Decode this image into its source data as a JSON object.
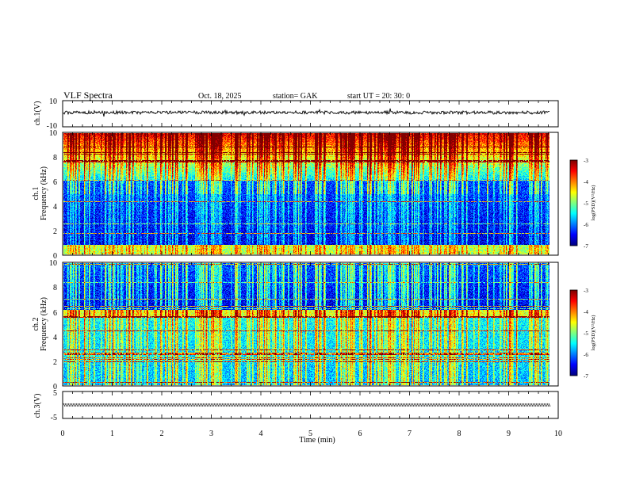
{
  "header": {
    "title": "VLF  Spectra",
    "date": "Oct. 18, 2025",
    "station": "station= GAK",
    "start": "start  UT  =   20: 30: 0"
  },
  "chart_data": [
    {
      "type": "line",
      "name": "ch1-waveform",
      "ylabel": "ch.1(V)",
      "ylim": [
        -10,
        10
      ],
      "yticks": [
        "10",
        "-10"
      ]
    },
    {
      "type": "heatmap",
      "name": "ch1-spectrogram",
      "ylabel_channel": "ch.1",
      "ylabel": "Frequency  (kHz)",
      "ylim": [
        0,
        10
      ],
      "yticks": [
        "0",
        "2",
        "4",
        "6",
        "8",
        "10"
      ],
      "colorbar": {
        "label": "log(PSD)(V²/Hz)",
        "range": [
          -7,
          -3
        ],
        "ticks": [
          "-3",
          "-4",
          "-5",
          "-6",
          "-7"
        ]
      }
    },
    {
      "type": "heatmap",
      "name": "ch2-spectrogram",
      "ylabel_channel": "ch.2",
      "ylabel": "Frequency  (kHz)",
      "ylim": [
        0,
        10
      ],
      "yticks": [
        "0",
        "2",
        "4",
        "6",
        "8",
        "10"
      ],
      "colorbar": {
        "label": "log(PSD)(V²/Hz)",
        "range": [
          -7,
          -3
        ],
        "ticks": [
          "-3",
          "-4",
          "-5",
          "-6",
          "-7"
        ]
      }
    },
    {
      "type": "line",
      "name": "ch3-waveform",
      "ylabel": "ch.3(V)",
      "ylim": [
        -5,
        5
      ],
      "yticks": [
        "5",
        "-5"
      ]
    }
  ],
  "xaxis": {
    "label": "Time  (min)",
    "range": [
      0,
      10
    ],
    "ticks": [
      "0",
      "1",
      "2",
      "3",
      "4",
      "5",
      "6",
      "7",
      "8",
      "9",
      "10"
    ]
  }
}
